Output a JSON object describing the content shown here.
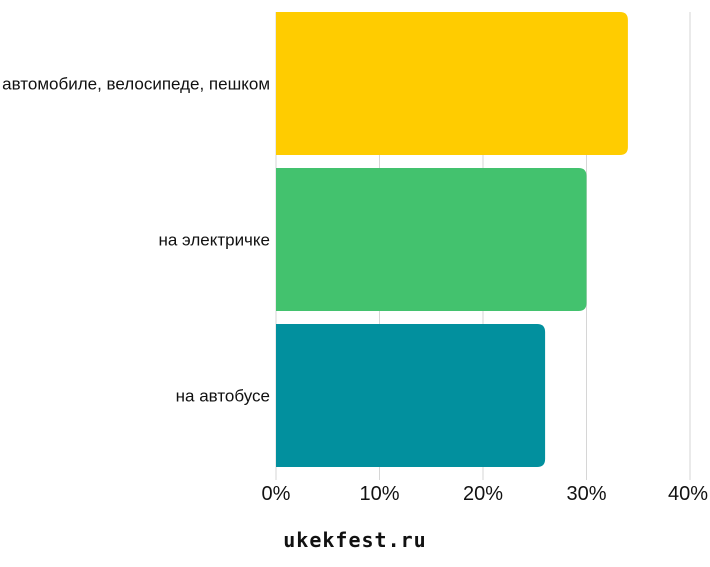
{
  "chart_data": {
    "type": "bar",
    "orientation": "horizontal",
    "categories": [
      "на автомобиле, велосипеде, пешком",
      "на электричке",
      "на автобусе"
    ],
    "values": [
      34,
      30,
      26
    ],
    "colors": [
      "#ffcc00",
      "#43c26e",
      "#02909e"
    ],
    "xlim": [
      0,
      40
    ],
    "x_ticks": [
      0,
      10,
      20,
      30,
      40
    ],
    "x_tick_labels": [
      "0%",
      "10%",
      "20%",
      "30%",
      "40%"
    ],
    "grid": true,
    "legend": "none"
  },
  "footer": {
    "text": "ukekfest.ru"
  }
}
